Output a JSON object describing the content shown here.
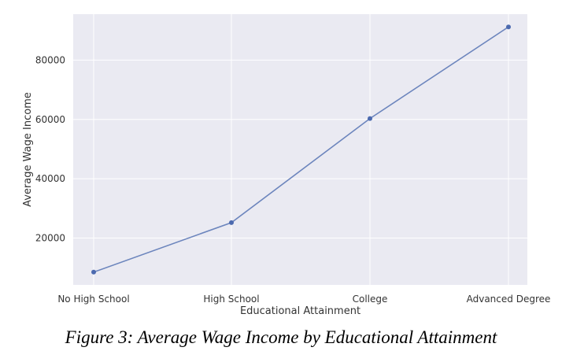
{
  "chart_data": {
    "type": "line",
    "categories": [
      "No High School",
      "High School",
      "College",
      "Advanced Degree"
    ],
    "values": [
      8500,
      25200,
      60300,
      91200
    ],
    "xlabel": "Educational Attainment",
    "ylabel": "Average Wage Income",
    "yticks": [
      20000,
      40000,
      60000,
      80000
    ],
    "ylim": [
      4200,
      95500
    ],
    "grid": true,
    "colors": {
      "background": "#eaeaf2",
      "grid": "#ffffff",
      "line": "#6c85bd",
      "marker": "#4c6aaf"
    }
  },
  "caption": "Figure 3: Average Wage Income by Educational Attainment"
}
